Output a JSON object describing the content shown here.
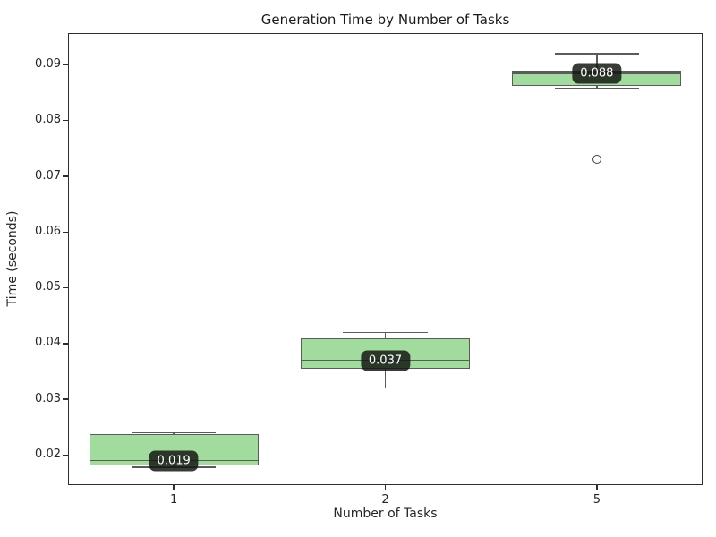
{
  "chart_data": {
    "type": "box",
    "title": "Generation Time by Number of Tasks",
    "xlabel": "Number of Tasks",
    "ylabel": "Time (seconds)",
    "categories": [
      "1",
      "2",
      "5"
    ],
    "ylim": [
      0.0146,
      0.0957
    ],
    "yticks": [
      {
        "value": 0.02,
        "label": "0.02"
      },
      {
        "value": 0.03,
        "label": "0.03"
      },
      {
        "value": 0.04,
        "label": "0.04"
      },
      {
        "value": 0.05,
        "label": "0.05"
      },
      {
        "value": 0.06,
        "label": "0.06"
      },
      {
        "value": 0.07,
        "label": "0.07"
      },
      {
        "value": 0.08,
        "label": "0.08"
      },
      {
        "value": 0.09,
        "label": "0.09"
      }
    ],
    "grid": false,
    "legend": null,
    "box_width": 0.8,
    "series": [
      {
        "category": "1",
        "whisker_low": 0.0178,
        "q1": 0.0182,
        "median": 0.019,
        "q3": 0.0238,
        "whisker_high": 0.024,
        "outliers": [],
        "annotation": "0.019"
      },
      {
        "category": "2",
        "whisker_low": 0.032,
        "q1": 0.0355,
        "median": 0.037,
        "q3": 0.041,
        "whisker_high": 0.042,
        "outliers": [],
        "annotation": "0.037"
      },
      {
        "category": "5",
        "whisker_low": 0.0858,
        "q1": 0.0862,
        "median": 0.0885,
        "q3": 0.089,
        "whisker_high": 0.092,
        "outliers": [
          0.073
        ],
        "annotation": "0.088"
      }
    ],
    "colors": {
      "box_fill": "#a1dc9e",
      "box_edge": "#5b5b5b",
      "median": "#5b5b5b",
      "whisker": "#5b5b5b",
      "outlier_edge": "#414141",
      "annotation_bg": "rgba(18,22,18,0.84)",
      "annotation_text": "#ffffff",
      "spine": "#2e2e2e",
      "text": "#262626"
    }
  }
}
